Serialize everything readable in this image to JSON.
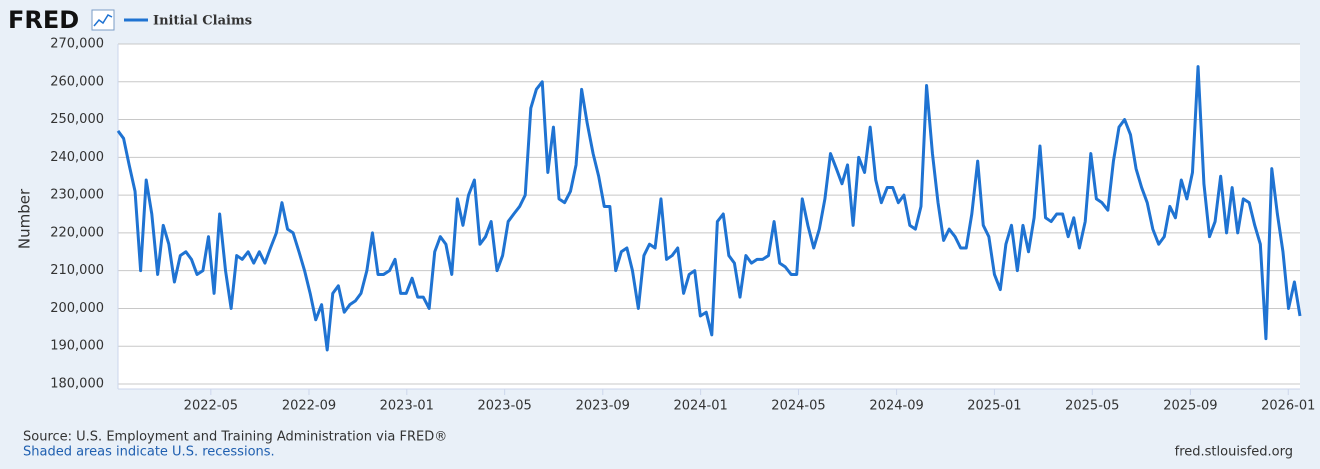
{
  "logo": "FRED",
  "chart_data": {
    "type": "line",
    "y_label": "Number",
    "x": [
      2022.017,
      2022.036,
      2022.055,
      2022.075,
      2022.094,
      2022.113,
      2022.132,
      2022.152,
      2022.171,
      2022.19,
      2022.209,
      2022.229,
      2022.248,
      2022.267,
      2022.286,
      2022.306,
      2022.325,
      2022.344,
      2022.363,
      2022.383,
      2022.402,
      2022.421,
      2022.44,
      2022.46,
      2022.479,
      2022.498,
      2022.517,
      2022.536,
      2022.556,
      2022.575,
      2022.594,
      2022.613,
      2022.633,
      2022.652,
      2022.671,
      2022.69,
      2022.71,
      2022.729,
      2022.748,
      2022.767,
      2022.787,
      2022.806,
      2022.825,
      2022.844,
      2022.864,
      2022.883,
      2022.902,
      2022.921,
      2022.941,
      2022.96,
      2022.979,
      2022.998,
      2023.018,
      2023.037,
      2023.056,
      2023.076,
      2023.095,
      2023.114,
      2023.133,
      2023.153,
      2023.172,
      2023.191,
      2023.21,
      2023.23,
      2023.249,
      2023.268,
      2023.287,
      2023.307,
      2023.326,
      2023.345,
      2023.364,
      2023.384,
      2023.403,
      2023.422,
      2023.441,
      2023.461,
      2023.48,
      2023.499,
      2023.518,
      2023.537,
      2023.557,
      2023.576,
      2023.595,
      2023.614,
      2023.634,
      2023.653,
      2023.672,
      2023.691,
      2023.711,
      2023.73,
      2023.749,
      2023.768,
      2023.788,
      2023.807,
      2023.826,
      2023.845,
      2023.865,
      2023.884,
      2023.903,
      2023.922,
      2023.942,
      2023.961,
      2023.98,
      2023.999,
      2024.019,
      2024.038,
      2024.057,
      2024.077,
      2024.096,
      2024.115,
      2024.134,
      2024.154,
      2024.173,
      2024.192,
      2024.211,
      2024.231,
      2024.25,
      2024.269,
      2024.288,
      2024.308,
      2024.327,
      2024.346,
      2024.365,
      2024.385,
      2024.404,
      2024.423,
      2024.442,
      2024.462,
      2024.481,
      2024.5,
      2024.519,
      2024.538,
      2024.558,
      2024.577,
      2024.596,
      2024.615,
      2024.635,
      2024.654,
      2024.673,
      2024.692,
      2024.712,
      2024.731,
      2024.75,
      2024.769,
      2024.789,
      2024.808,
      2024.827,
      2024.846,
      2024.866,
      2024.885,
      2024.904,
      2024.923,
      2024.943,
      2024.962,
      2024.981,
      2025.0,
      2025.02,
      2025.039,
      2025.058,
      2025.078,
      2025.097,
      2025.116,
      2025.135,
      2025.155,
      2025.174,
      2025.193,
      2025.212,
      2025.232,
      2025.251,
      2025.27,
      2025.289,
      2025.309,
      2025.328,
      2025.347,
      2025.366,
      2025.386,
      2025.405,
      2025.424,
      2025.443,
      2025.463,
      2025.482,
      2025.501,
      2025.52,
      2025.539,
      2025.559,
      2025.578,
      2025.597,
      2025.616,
      2025.636,
      2025.655,
      2025.674,
      2025.693,
      2025.713,
      2025.732,
      2025.751,
      2025.77,
      2025.79,
      2025.809,
      2025.828,
      2025.847,
      2025.867,
      2025.886,
      2025.905,
      2025.924,
      2025.944,
      2025.963,
      2025.982,
      2026.001,
      2026.021,
      2026.04
    ],
    "series": [
      {
        "name": "Initial Claims",
        "color": "#1f73d2",
        "values": [
          247000,
          245000,
          238000,
          231000,
          210000,
          234000,
          225000,
          209000,
          222000,
          217000,
          207000,
          214000,
          215000,
          213000,
          209000,
          210000,
          219000,
          204000,
          225000,
          210000,
          200000,
          214000,
          213000,
          215000,
          212000,
          215000,
          212000,
          216000,
          220000,
          228000,
          221000,
          220000,
          215000,
          210000,
          204000,
          197000,
          201000,
          189000,
          204000,
          206000,
          199000,
          201000,
          202000,
          204000,
          210000,
          220000,
          209000,
          209000,
          210000,
          213000,
          204000,
          204000,
          208000,
          203000,
          203000,
          200000,
          215000,
          219000,
          217000,
          209000,
          229000,
          222000,
          230000,
          234000,
          217000,
          219000,
          223000,
          210000,
          214000,
          223000,
          225000,
          227000,
          230000,
          253000,
          258000,
          260000,
          236000,
          248000,
          229000,
          228000,
          231000,
          238000,
          258000,
          249000,
          241000,
          235000,
          227000,
          227000,
          210000,
          215000,
          216000,
          210000,
          200000,
          214000,
          217000,
          216000,
          229000,
          213000,
          214000,
          216000,
          204000,
          209000,
          210000,
          198000,
          199000,
          193000,
          223000,
          225000,
          214000,
          212000,
          203000,
          214000,
          212000,
          213000,
          213000,
          214000,
          223000,
          212000,
          211000,
          209000,
          209000,
          229000,
          222000,
          216000,
          221000,
          229000,
          241000,
          237000,
          233000,
          238000,
          222000,
          240000,
          236000,
          248000,
          234000,
          228000,
          232000,
          232000,
          228000,
          230000,
          222000,
          221000,
          227000,
          259000,
          241000,
          228000,
          218000,
          221000,
          219000,
          216000,
          216000,
          225000,
          239000,
          222000,
          219000,
          209000,
          205000,
          217000,
          222000,
          210000,
          222000,
          215000,
          224000,
          243000,
          224000,
          223000,
          225000,
          225000,
          219000,
          224000,
          216000,
          223000,
          241000,
          229000,
          228000,
          226000,
          239000,
          248000,
          250000,
          246000,
          237000,
          232000,
          228000,
          221000,
          217000,
          219000,
          227000,
          224000,
          234000,
          229000,
          236000,
          264000,
          233000,
          219000,
          223000,
          235000,
          220000,
          232000,
          220000,
          229000,
          228000,
          222000,
          217000,
          192000,
          237000,
          225000,
          215000,
          200000,
          207000,
          198000
        ]
      }
    ],
    "xlim": [
      2022.017,
      2026.04
    ],
    "ylim": [
      180000,
      270000
    ],
    "xticks": [
      {
        "value": 2022.333,
        "label": "2022-05"
      },
      {
        "value": 2022.667,
        "label": "2022-09"
      },
      {
        "value": 2023,
        "label": "2023-01"
      },
      {
        "value": 2023.333,
        "label": "2023-05"
      },
      {
        "value": 2023.667,
        "label": "2023-09"
      },
      {
        "value": 2024,
        "label": "2024-01"
      },
      {
        "value": 2024.333,
        "label": "2024-05"
      },
      {
        "value": 2024.667,
        "label": "2024-09"
      },
      {
        "value": 2025,
        "label": "2025-01"
      },
      {
        "value": 2025.333,
        "label": "2025-05"
      },
      {
        "value": 2025.667,
        "label": "2025-09"
      },
      {
        "value": 2026,
        "label": "2026-01"
      }
    ],
    "yticks": [
      {
        "value": 180000,
        "label": "180,000"
      },
      {
        "value": 190000,
        "label": "190,000"
      },
      {
        "value": 200000,
        "label": "200,000"
      },
      {
        "value": 210000,
        "label": "210,000"
      },
      {
        "value": 220000,
        "label": "220,000"
      },
      {
        "value": 230000,
        "label": "230,000"
      },
      {
        "value": 240000,
        "label": "240,000"
      },
      {
        "value": 250000,
        "label": "250,000"
      },
      {
        "value": 260000,
        "label": "260,000"
      },
      {
        "value": 270000,
        "label": "270,000"
      }
    ],
    "grid": true
  },
  "footer": {
    "source": "Source: U.S. Employment and Training Administration via FRED®",
    "note": "Shaded areas indicate U.S. recessions.",
    "site": "fred.stlouisfed.org"
  }
}
